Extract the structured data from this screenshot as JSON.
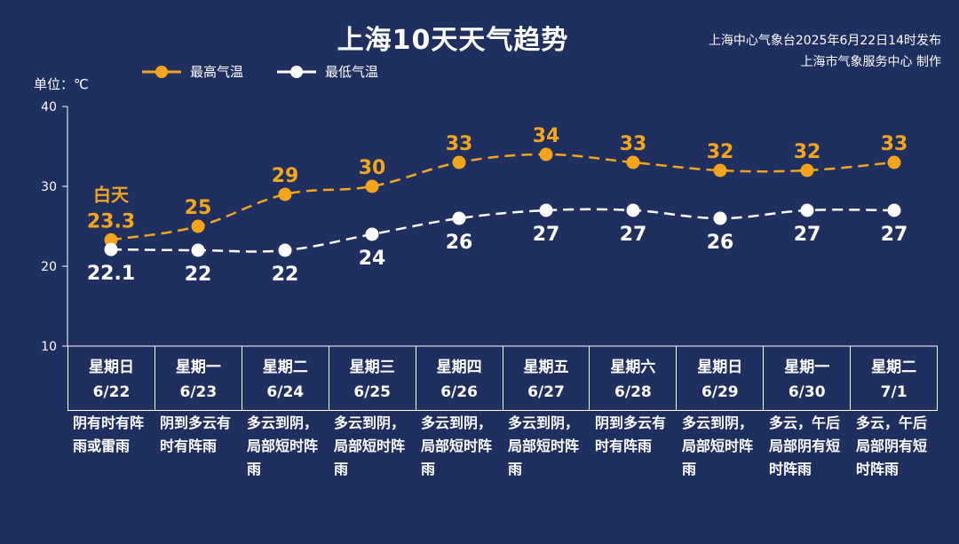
{
  "title": "上海10天天气趋势",
  "publisher": {
    "line1": "上海中心气象台2025年6月22日14时发布",
    "line2": "上海市气象服务中心 制作"
  },
  "unit_label": "单位：℃",
  "day_label": "白天",
  "colors": {
    "background": "#1f3060",
    "high": "#f5a51c",
    "low": "#ffffff"
  },
  "chart_data": {
    "type": "line",
    "x": [
      "6/22",
      "6/23",
      "6/24",
      "6/25",
      "6/26",
      "6/27",
      "6/28",
      "6/29",
      "6/30",
      "7/1"
    ],
    "ylim": [
      10,
      40
    ],
    "yticks": [
      10,
      20,
      30,
      40
    ],
    "ylabel": "单位：℃",
    "legend_placement": "top-left",
    "series": [
      {
        "name": "最高气温",
        "values": [
          23.3,
          25,
          29,
          30,
          33,
          34,
          33,
          32,
          32,
          33
        ],
        "labels": [
          "23.3",
          "25",
          "29",
          "30",
          "33",
          "34",
          "33",
          "32",
          "32",
          "33"
        ]
      },
      {
        "name": "最低气温",
        "values": [
          22.1,
          22,
          22,
          24,
          26,
          27,
          27,
          26,
          27,
          27
        ],
        "labels": [
          "22.1",
          "22",
          "22",
          "24",
          "26",
          "27",
          "27",
          "26",
          "27",
          "27"
        ]
      }
    ]
  },
  "days": [
    {
      "weekday": "星期日",
      "date": "6/22",
      "weather": "阴有时有阵雨或雷雨"
    },
    {
      "weekday": "星期一",
      "date": "6/23",
      "weather": "阴到多云有时有阵雨"
    },
    {
      "weekday": "星期二",
      "date": "6/24",
      "weather": "多云到阴，局部短时阵雨"
    },
    {
      "weekday": "星期三",
      "date": "6/25",
      "weather": "多云到阴，局部短时阵雨"
    },
    {
      "weekday": "星期四",
      "date": "6/26",
      "weather": "多云到阴，局部短时阵雨"
    },
    {
      "weekday": "星期五",
      "date": "6/27",
      "weather": "多云到阴，局部短时阵雨"
    },
    {
      "weekday": "星期六",
      "date": "6/28",
      "weather": "阴到多云有时有阵雨"
    },
    {
      "weekday": "星期日",
      "date": "6/29",
      "weather": "多云到阴，局部短时阵雨"
    },
    {
      "weekday": "星期一",
      "date": "6/30",
      "weather": "多云，午后局部阴有短时阵雨"
    },
    {
      "weekday": "星期二",
      "date": "7/1",
      "weather": "多云，午后局部阴有短时阵雨"
    }
  ]
}
